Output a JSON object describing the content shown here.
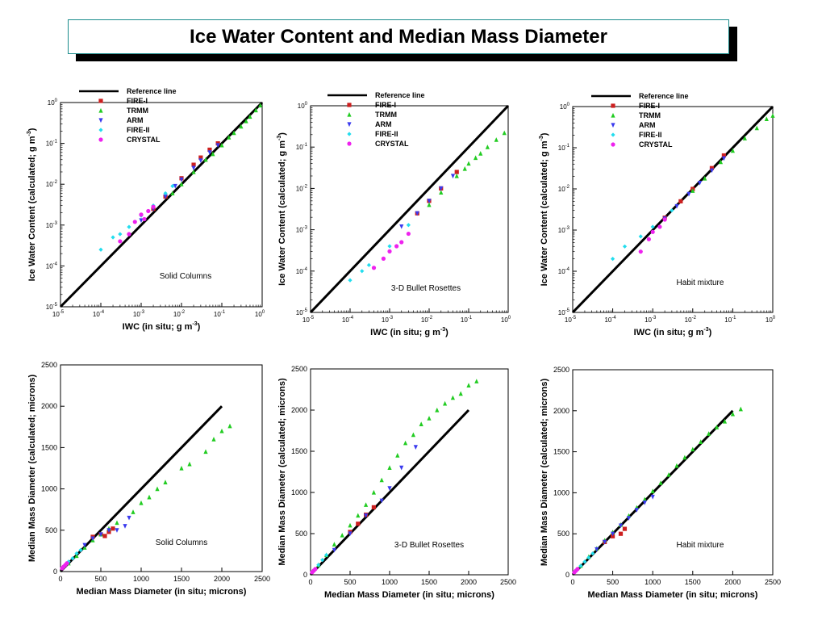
{
  "page_title": "Ice Water Content and Median Mass Diameter",
  "colors": {
    "reference": "#000000",
    "FIRE-I": "#cc1f1f",
    "TRMM": "#22cc22",
    "ARM": "#3a3aee",
    "FIRE-II": "#22ddee",
    "CRYSTAL": "#ee22ee"
  },
  "legend_entries": [
    "Reference line",
    "FIRE-I",
    "TRMM",
    "ARM",
    "FIRE-II",
    "CRYSTAL"
  ],
  "chart_data": [
    {
      "type": "scatter",
      "scale": "log",
      "annotation": "Solid Columns",
      "xlabel": "IWC (in situ; g m",
      "xlabel_sup": "-3",
      "ylabel": "Ice Water Content (calculated; g m",
      "ylabel_sup": "-3",
      "xlim": [
        1e-05,
        1
      ],
      "ylim": [
        1e-05,
        1
      ],
      "tick_exponents": [
        -5,
        -4,
        -3,
        -2,
        -1,
        0
      ],
      "tick_base": "10",
      "legend": "top-left",
      "reference_line": [
        [
          1e-05,
          1e-05
        ],
        [
          1,
          1
        ]
      ],
      "series": [
        {
          "name": "FIRE-I",
          "marker": "square",
          "x": [
            0.002,
            0.004,
            0.01,
            0.02,
            0.03,
            0.05,
            0.08
          ],
          "y": [
            0.0025,
            0.005,
            0.014,
            0.03,
            0.045,
            0.07,
            0.1
          ]
        },
        {
          "name": "TRMM",
          "marker": "triangle",
          "x": [
            0.006,
            0.01,
            0.02,
            0.04,
            0.06,
            0.1,
            0.15,
            0.2,
            0.3,
            0.4,
            0.5,
            0.7,
            0.9
          ],
          "y": [
            0.006,
            0.01,
            0.02,
            0.04,
            0.055,
            0.09,
            0.14,
            0.18,
            0.26,
            0.35,
            0.45,
            0.65,
            0.85
          ]
        },
        {
          "name": "ARM",
          "marker": "triangle-down",
          "x": [
            0.001,
            0.002,
            0.004,
            0.007,
            0.01,
            0.02,
            0.03,
            0.05,
            0.08
          ],
          "y": [
            0.0013,
            0.0025,
            0.005,
            0.009,
            0.013,
            0.025,
            0.038,
            0.06,
            0.09
          ]
        },
        {
          "name": "FIRE-II",
          "marker": "diamond",
          "x": [
            0.0001,
            0.0002,
            0.0003,
            0.0005,
            0.001,
            0.002,
            0.004,
            0.006
          ],
          "y": [
            0.00025,
            0.0005,
            0.0006,
            0.0009,
            0.0017,
            0.003,
            0.006,
            0.009
          ]
        },
        {
          "name": "CRYSTAL",
          "marker": "circle",
          "x": [
            0.0003,
            0.0005,
            0.0007,
            0.001,
            0.0012,
            0.0015,
            0.002
          ],
          "y": [
            0.0004,
            0.0006,
            0.0012,
            0.0018,
            0.0014,
            0.0022,
            0.0028
          ]
        }
      ]
    },
    {
      "type": "scatter",
      "scale": "log",
      "annotation": "3-D Bullet Rosettes",
      "xlabel": "IWC (in situ; g m",
      "xlabel_sup": "-3",
      "ylabel": "Ice Water Content (calculated; g m",
      "ylabel_sup": "-3",
      "xlim": [
        1e-05,
        1
      ],
      "ylim": [
        1e-05,
        1
      ],
      "tick_exponents": [
        -5,
        -4,
        -3,
        -2,
        -1,
        0
      ],
      "tick_base": "10",
      "legend": "top-left",
      "reference_line": [
        [
          1e-05,
          1e-05
        ],
        [
          1,
          1
        ]
      ],
      "series": [
        {
          "name": "FIRE-I",
          "marker": "square",
          "x": [
            0.005,
            0.01,
            0.02,
            0.05
          ],
          "y": [
            0.0025,
            0.005,
            0.01,
            0.025
          ]
        },
        {
          "name": "TRMM",
          "marker": "triangle",
          "x": [
            0.01,
            0.02,
            0.05,
            0.08,
            0.1,
            0.15,
            0.2,
            0.3,
            0.5,
            0.8
          ],
          "y": [
            0.004,
            0.008,
            0.02,
            0.03,
            0.04,
            0.055,
            0.07,
            0.1,
            0.15,
            0.22
          ]
        },
        {
          "name": "ARM",
          "marker": "triangle-down",
          "x": [
            0.002,
            0.005,
            0.01,
            0.02,
            0.04
          ],
          "y": [
            0.0012,
            0.0025,
            0.005,
            0.01,
            0.02
          ]
        },
        {
          "name": "FIRE-II",
          "marker": "diamond",
          "x": [
            0.0001,
            0.0002,
            0.0003,
            0.001,
            0.003
          ],
          "y": [
            6e-05,
            0.0001,
            0.00014,
            0.0004,
            0.0013
          ]
        },
        {
          "name": "CRYSTAL",
          "marker": "circle",
          "x": [
            0.0004,
            0.0007,
            0.001,
            0.0015,
            0.002,
            0.003
          ],
          "y": [
            0.00012,
            0.0002,
            0.0003,
            0.0004,
            0.0005,
            0.0008
          ]
        }
      ]
    },
    {
      "type": "scatter",
      "scale": "log",
      "annotation": "Habit mixture",
      "xlabel": "IWC (in situ; g m",
      "xlabel_sup": "-3",
      "ylabel": "Ice Water Content (calculated; g m",
      "ylabel_sup": "-3",
      "xlim": [
        1e-05,
        1
      ],
      "ylim": [
        1e-05,
        1
      ],
      "tick_exponents": [
        -5,
        -4,
        -3,
        -2,
        -1,
        0
      ],
      "tick_base": "10",
      "legend": "top-left",
      "reference_line": [
        [
          1e-05,
          1e-05
        ],
        [
          1,
          1
        ]
      ],
      "series": [
        {
          "name": "FIRE-I",
          "marker": "square",
          "x": [
            0.002,
            0.005,
            0.01,
            0.03,
            0.06
          ],
          "y": [
            0.002,
            0.005,
            0.01,
            0.032,
            0.065
          ]
        },
        {
          "name": "TRMM",
          "marker": "triangle",
          "x": [
            0.01,
            0.02,
            0.05,
            0.1,
            0.2,
            0.4,
            0.7,
            1.0
          ],
          "y": [
            0.009,
            0.018,
            0.045,
            0.085,
            0.17,
            0.3,
            0.5,
            0.6
          ]
        },
        {
          "name": "ARM",
          "marker": "triangle-down",
          "x": [
            0.002,
            0.004,
            0.008,
            0.015,
            0.03,
            0.06
          ],
          "y": [
            0.0019,
            0.0038,
            0.0075,
            0.014,
            0.028,
            0.055
          ]
        },
        {
          "name": "FIRE-II",
          "marker": "diamond",
          "x": [
            0.0001,
            0.0002,
            0.0005,
            0.001,
            0.003
          ],
          "y": [
            0.0002,
            0.0004,
            0.0007,
            0.0012,
            0.003
          ]
        },
        {
          "name": "CRYSTAL",
          "marker": "circle",
          "x": [
            0.0005,
            0.0008,
            0.001,
            0.0015,
            0.002
          ],
          "y": [
            0.0003,
            0.0006,
            0.0009,
            0.0012,
            0.0018
          ]
        }
      ]
    },
    {
      "type": "scatter",
      "scale": "linear",
      "annotation": "Solid Columns",
      "xlabel": "Median Mass Diameter (in situ; microns)",
      "ylabel": "Median Mass Diameter (calculated; microns)",
      "xlim": [
        0,
        2500
      ],
      "ylim": [
        0,
        2500
      ],
      "ticks": [
        0,
        500,
        1000,
        1500,
        2000,
        2500
      ],
      "reference_line": [
        [
          0,
          0
        ],
        [
          2000,
          2000
        ]
      ],
      "series": [
        {
          "name": "FIRE-I",
          "marker": "square",
          "x": [
            400,
            500,
            550,
            600,
            650
          ],
          "y": [
            420,
            450,
            430,
            480,
            520
          ]
        },
        {
          "name": "TRMM",
          "marker": "triangle",
          "x": [
            100,
            200,
            300,
            400,
            500,
            600,
            700,
            900,
            1000,
            1100,
            1200,
            1300,
            1500,
            1600,
            1800,
            1900,
            2000,
            2100
          ],
          "y": [
            100,
            190,
            290,
            380,
            450,
            520,
            590,
            720,
            830,
            900,
            1000,
            1080,
            1250,
            1300,
            1450,
            1600,
            1700,
            1760
          ]
        },
        {
          "name": "ARM",
          "marker": "triangle-down",
          "x": [
            300,
            400,
            500,
            600,
            700,
            800,
            850
          ],
          "y": [
            320,
            400,
            450,
            500,
            500,
            550,
            650
          ]
        },
        {
          "name": "FIRE-II",
          "marker": "diamond",
          "x": [
            50,
            100,
            150,
            200,
            250
          ],
          "y": [
            70,
            120,
            160,
            220,
            260
          ]
        },
        {
          "name": "CRYSTAL",
          "marker": "circle",
          "x": [
            20,
            40,
            60,
            80
          ],
          "y": [
            40,
            60,
            80,
            100
          ]
        }
      ]
    },
    {
      "type": "scatter",
      "scale": "linear",
      "annotation": "3-D Bullet Rosettes",
      "xlabel": "Median Mass Diameter (in situ; microns)",
      "ylabel": "Median Mass Diameter (calculated; microns)",
      "xlim": [
        0,
        2500
      ],
      "ylim": [
        0,
        2500
      ],
      "ticks": [
        0,
        500,
        1000,
        1500,
        2000,
        2500
      ],
      "reference_line": [
        [
          0,
          0
        ],
        [
          2000,
          2000
        ]
      ],
      "series": [
        {
          "name": "FIRE-I",
          "marker": "square",
          "x": [
            500,
            600,
            700,
            800
          ],
          "y": [
            520,
            620,
            730,
            820
          ]
        },
        {
          "name": "TRMM",
          "marker": "triangle",
          "x": [
            100,
            200,
            300,
            400,
            500,
            600,
            700,
            800,
            900,
            1000,
            1100,
            1200,
            1300,
            1400,
            1500,
            1600,
            1700,
            1800,
            1900,
            2000,
            2100
          ],
          "y": [
            120,
            240,
            370,
            480,
            600,
            720,
            850,
            1000,
            1150,
            1300,
            1450,
            1600,
            1700,
            1830,
            1900,
            2000,
            2080,
            2150,
            2200,
            2300,
            2350
          ]
        },
        {
          "name": "ARM",
          "marker": "triangle-down",
          "x": [
            300,
            500,
            700,
            900,
            1000,
            1150,
            1330
          ],
          "y": [
            300,
            500,
            720,
            900,
            1050,
            1300,
            1550
          ]
        },
        {
          "name": "FIRE-II",
          "marker": "diamond",
          "x": [
            50,
            100,
            150,
            200
          ],
          "y": [
            60,
            120,
            180,
            240
          ]
        },
        {
          "name": "CRYSTAL",
          "marker": "circle",
          "x": [
            20,
            40,
            60
          ],
          "y": [
            30,
            50,
            70
          ]
        }
      ]
    },
    {
      "type": "scatter",
      "scale": "linear",
      "annotation": "Habit mixture",
      "xlabel": "Median Mass Diameter (in situ; microns)",
      "ylabel": "Median Mass Diameter (calculated; microns)",
      "xlim": [
        0,
        2500
      ],
      "ylim": [
        0,
        2500
      ],
      "ticks": [
        0,
        500,
        1000,
        1500,
        2000,
        2500
      ],
      "reference_line": [
        [
          0,
          0
        ],
        [
          2000,
          2000
        ]
      ],
      "series": [
        {
          "name": "FIRE-I",
          "marker": "square",
          "x": [
            400,
            500,
            600,
            650
          ],
          "y": [
            400,
            470,
            500,
            560
          ]
        },
        {
          "name": "TRMM",
          "marker": "triangle",
          "x": [
            100,
            200,
            300,
            400,
            500,
            600,
            700,
            800,
            900,
            1000,
            1100,
            1200,
            1300,
            1400,
            1500,
            1600,
            1700,
            1800,
            1900,
            2000,
            2100
          ],
          "y": [
            110,
            220,
            320,
            420,
            520,
            610,
            720,
            820,
            920,
            1020,
            1120,
            1220,
            1330,
            1430,
            1530,
            1620,
            1720,
            1800,
            1870,
            1960,
            2020
          ]
        },
        {
          "name": "ARM",
          "marker": "triangle-down",
          "x": [
            300,
            400,
            500,
            600,
            700,
            800,
            900,
            1000
          ],
          "y": [
            310,
            400,
            500,
            600,
            690,
            790,
            880,
            950
          ]
        },
        {
          "name": "FIRE-II",
          "marker": "diamond",
          "x": [
            50,
            100,
            150,
            200,
            250
          ],
          "y": [
            60,
            110,
            160,
            210,
            260
          ]
        },
        {
          "name": "CRYSTAL",
          "marker": "circle",
          "x": [
            20,
            40,
            60
          ],
          "y": [
            30,
            50,
            70
          ]
        }
      ]
    }
  ]
}
